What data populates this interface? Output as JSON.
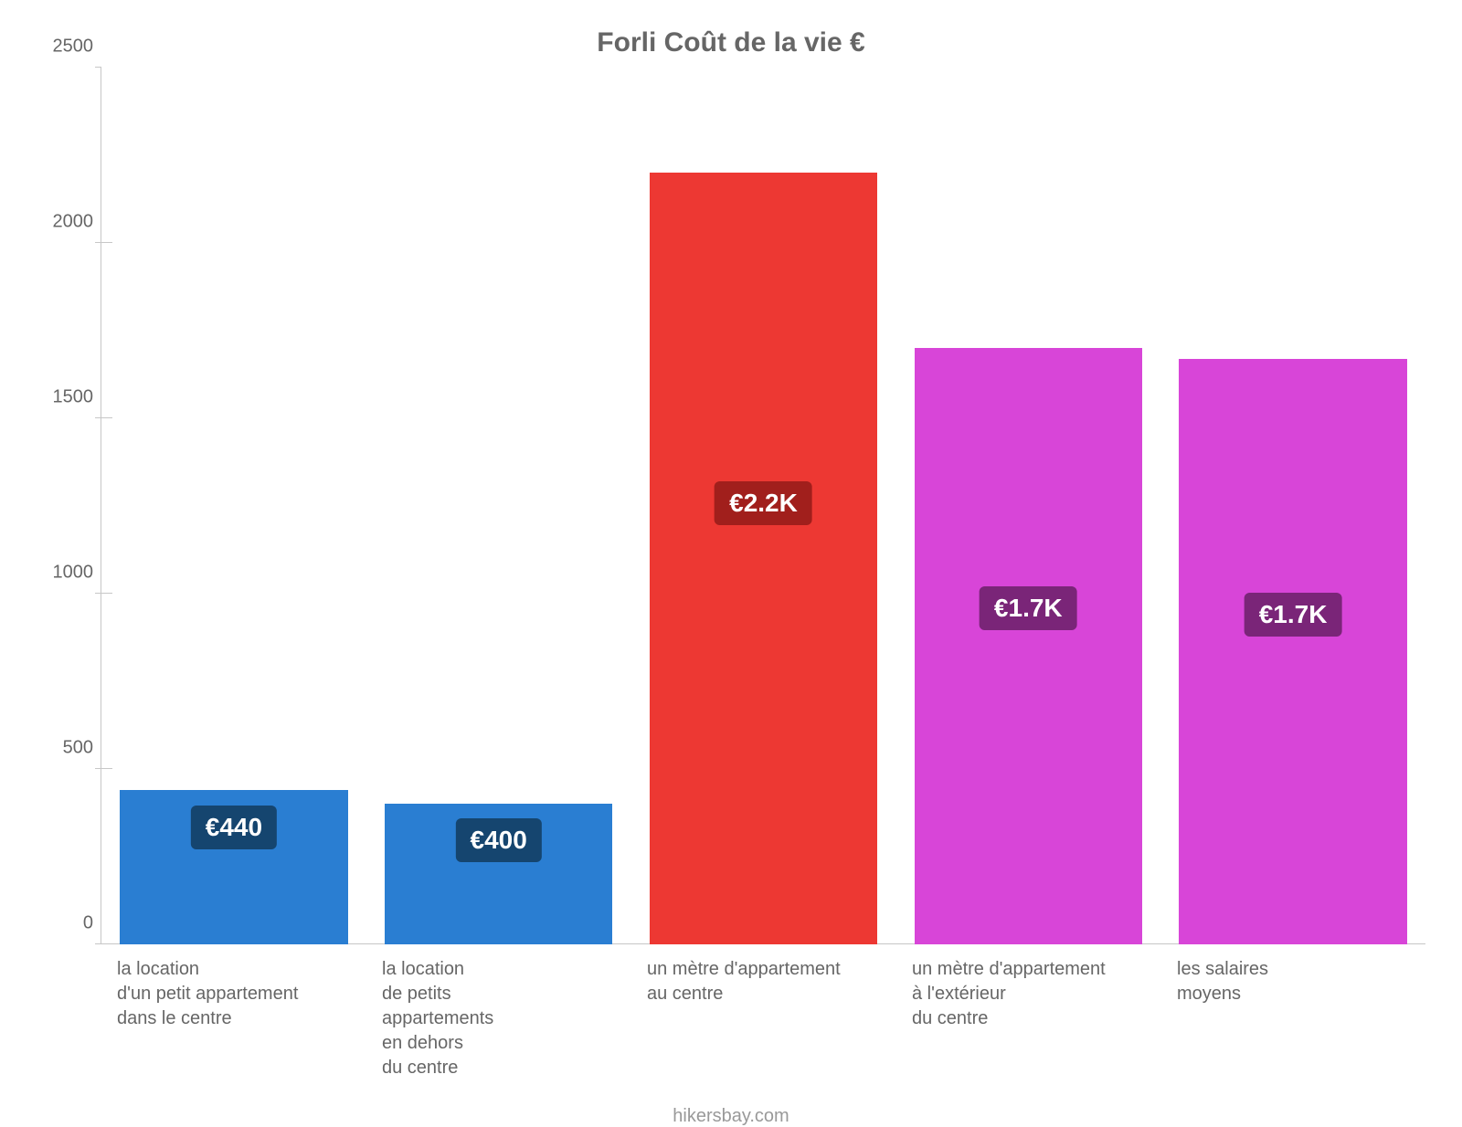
{
  "chart": {
    "type": "bar",
    "title": "Forli Coût de la vie €",
    "title_fontsize": 30,
    "title_color": "#666666",
    "background_color": "#ffffff",
    "grid_color": "#c7c7c7",
    "axis_color": "#c7c7c7",
    "tick_label_color": "#666666",
    "tick_label_fontsize": 20,
    "bar_width_ratio": 0.86,
    "ylim": [
      0,
      2500
    ],
    "ytick_step": 500,
    "yticks": [
      0,
      500,
      1000,
      1500,
      2000,
      2500
    ],
    "gridlines_at": [
      500,
      1000,
      1500,
      2000
    ],
    "categories": [
      "la location\nd'un petit appartement\ndans le centre",
      "la location\nde petits\nappartements\nen dehors\ndu centre",
      "un mètre d'appartement\nau centre",
      "un mètre d'appartement\nà l'extérieur\ndu centre",
      "les salaires\nmoyens"
    ],
    "values": [
      440,
      400,
      2200,
      1700,
      1670
    ],
    "value_labels": [
      "€440",
      "€400",
      "€2.2K",
      "€1.7K",
      "€1.7K"
    ],
    "bar_colors": [
      "#2a7ed2",
      "#2a7ed2",
      "#ed3833",
      "#d845d8",
      "#d845d8"
    ],
    "badge_colors": [
      "#15456f",
      "#15456f",
      "#a11f1c",
      "#7a2578",
      "#7a2578"
    ],
    "badge_text_color": "#ffffff",
    "badge_fontsize": 28,
    "badge_border_radius": 6,
    "xlabel_fontsize": 20,
    "xlabel_color": "#666666"
  },
  "attribution": "hikersbay.com",
  "attribution_color": "#999999",
  "attribution_fontsize": 20
}
